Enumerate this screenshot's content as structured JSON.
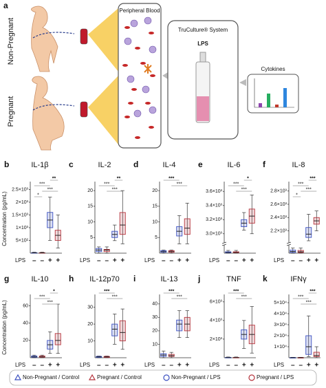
{
  "panel_a": {
    "letter": "a",
    "non_pregnant": "Non-Pregnant",
    "pregnant": "Pregnant",
    "blood": "Peripheral Blood",
    "truculture": "TruCulture® System",
    "lps": "LPS",
    "cytokines": "Cytokines"
  },
  "y_axis_label": "Concentration (pg/mL)",
  "lps_label": "LPS",
  "lps_groups": [
    "–",
    "–",
    "+",
    "+"
  ],
  "legend": [
    {
      "name": "Non-Pregnant / Control",
      "color": "#3a4fc0",
      "marker": "triangle"
    },
    {
      "name": "Pregnant / Control",
      "color": "#b5323b",
      "marker": "triangle"
    },
    {
      "name": "Non-Pregnant / LPS",
      "color": "#3a4fc0",
      "marker": "circle"
    },
    {
      "name": "Pregnant / LPS",
      "color": "#b5323b",
      "marker": "circle"
    }
  ],
  "chart_data": [
    {
      "type": "box",
      "panel": "b",
      "title": "IL-1β",
      "ylim": [
        0,
        2700
      ],
      "yticks": [
        {
          "value": 500,
          "label": "5×10²"
        },
        {
          "value": 1000,
          "label": "1×10³"
        },
        {
          "value": 1500,
          "label": "1.5×10³"
        },
        {
          "value": 2000,
          "label": "2×10³"
        },
        {
          "value": 2500,
          "label": "2.5×10³"
        }
      ],
      "boxes": [
        [
          0,
          5,
          10,
          20,
          40
        ],
        [
          0,
          5,
          10,
          20,
          40
        ],
        [
          500,
          1000,
          1300,
          1600,
          2200
        ],
        [
          200,
          500,
          700,
          900,
          1500
        ]
      ],
      "annotations": [
        {
          "text": "**",
          "from": 2,
          "to": 3
        },
        {
          "text": "***",
          "from": 0,
          "to": 2
        },
        {
          "text": "***",
          "from": 1,
          "to": 3
        },
        {
          "text": "*",
          "from": 0,
          "to": 1
        }
      ]
    },
    {
      "type": "box",
      "panel": "c",
      "title": "IL-2",
      "ylim": [
        0,
        22
      ],
      "yticks": [
        5,
        10,
        15,
        20
      ],
      "boxes": [
        [
          0,
          0.5,
          1,
          1.5,
          2
        ],
        [
          0,
          0.5,
          1,
          1.2,
          2
        ],
        [
          4,
          5,
          6,
          7,
          9
        ],
        [
          3,
          6,
          9,
          13,
          20
        ]
      ],
      "annotations": [
        {
          "text": "**",
          "from": 2,
          "to": 3
        },
        {
          "text": "***",
          "from": 0,
          "to": 2
        },
        {
          "text": "***",
          "from": 1,
          "to": 3
        }
      ]
    },
    {
      "type": "box",
      "panel": "d",
      "title": "IL-4",
      "ylim": [
        0,
        22
      ],
      "yticks": [
        5,
        10,
        15,
        20
      ],
      "boxes": [
        [
          0,
          0.3,
          0.5,
          0.8,
          1
        ],
        [
          0,
          0.3,
          0.5,
          0.8,
          1
        ],
        [
          3,
          5.5,
          7,
          8.5,
          12
        ],
        [
          3,
          6,
          8,
          11,
          16
        ]
      ],
      "annotations": [
        {
          "text": "***",
          "from": 0,
          "to": 2
        },
        {
          "text": "***",
          "from": 1,
          "to": 3
        }
      ]
    },
    {
      "type": "box",
      "panel": "e",
      "title": "IL-6",
      "ylim": [
        0,
        3700
      ],
      "axis_break": [
        200,
        2900
      ],
      "yticks": [
        {
          "value": 3000,
          "label": "3.0×10³"
        },
        {
          "value": 3200,
          "label": "3.2×10³"
        },
        {
          "value": 3400,
          "label": "3.4×10³"
        },
        {
          "value": 3600,
          "label": "3.6×10³"
        }
      ],
      "boxes": [
        [
          0,
          10,
          20,
          40,
          80
        ],
        [
          0,
          10,
          20,
          40,
          80
        ],
        [
          3050,
          3100,
          3150,
          3200,
          3300
        ],
        [
          3000,
          3150,
          3250,
          3350,
          3550
        ]
      ],
      "annotations": [
        {
          "text": "*",
          "from": 2,
          "to": 3
        },
        {
          "text": "***",
          "from": 0,
          "to": 2
        },
        {
          "text": "***",
          "from": 1,
          "to": 3
        }
      ]
    },
    {
      "type": "box",
      "panel": "f",
      "title": "IL-8",
      "ylim": [
        0,
        2900
      ],
      "axis_break": [
        200,
        2050
      ],
      "yticks": [
        {
          "value": 2200,
          "label": "2.2×10³"
        },
        {
          "value": 2400,
          "label": "2.4×10³"
        },
        {
          "value": 2600,
          "label": "2.6×10³"
        },
        {
          "value": 2800,
          "label": "2.8×10³"
        }
      ],
      "boxes": [
        [
          0,
          20,
          50,
          90,
          150
        ],
        [
          0,
          20,
          40,
          80,
          150
        ],
        [
          2050,
          2100,
          2150,
          2250,
          2450
        ],
        [
          2200,
          2300,
          2350,
          2400,
          2500
        ]
      ],
      "annotations": [
        {
          "text": "***",
          "from": 2,
          "to": 3
        },
        {
          "text": "***",
          "from": 0,
          "to": 2
        },
        {
          "text": "***",
          "from": 1,
          "to": 3
        },
        {
          "text": "*",
          "from": 0,
          "to": 1
        }
      ]
    },
    {
      "type": "box",
      "panel": "g",
      "title": "IL-10",
      "ylim": [
        0,
        70
      ],
      "yticks": [
        20,
        40,
        60
      ],
      "boxes": [
        [
          0,
          0.5,
          1,
          2,
          3
        ],
        [
          0,
          0.5,
          1,
          2,
          3
        ],
        [
          5,
          10,
          15,
          20,
          30
        ],
        [
          5,
          15,
          20,
          28,
          62
        ]
      ],
      "annotations": [
        {
          "text": "*",
          "from": 2,
          "to": 3
        },
        {
          "text": "***",
          "from": 0,
          "to": 2
        },
        {
          "text": "***",
          "from": 1,
          "to": 3
        }
      ]
    },
    {
      "type": "box",
      "panel": "h",
      "title": "IL-12p70",
      "ylim": [
        0,
        36
      ],
      "yticks": [
        10,
        20,
        30
      ],
      "boxes": [
        [
          0,
          0.2,
          0.5,
          0.8,
          1
        ],
        [
          0,
          0.2,
          0.5,
          0.8,
          1
        ],
        [
          8,
          13,
          17,
          20,
          26
        ],
        [
          5,
          10,
          15,
          22,
          29
        ]
      ],
      "annotations": [
        {
          "text": "***",
          "from": 0,
          "to": 2
        },
        {
          "text": "***",
          "from": 1,
          "to": 3
        }
      ]
    },
    {
      "type": "box",
      "panel": "i",
      "title": "IL-13",
      "ylim": [
        0,
        45
      ],
      "yticks": [
        10,
        20,
        30,
        40
      ],
      "boxes": [
        [
          0,
          1,
          2,
          3,
          5
        ],
        [
          0,
          1,
          1.5,
          2.5,
          4
        ],
        [
          15,
          20,
          25,
          28,
          35
        ],
        [
          15,
          20,
          25,
          30,
          35
        ]
      ],
      "annotations": [
        {
          "text": "***",
          "from": 0,
          "to": 2
        },
        {
          "text": "***",
          "from": 1,
          "to": 3
        }
      ]
    },
    {
      "type": "box",
      "panel": "j",
      "title": "TNF",
      "ylim": [
        0,
        6500
      ],
      "yticks": [
        {
          "value": 2000,
          "label": "2×10³"
        },
        {
          "value": 4000,
          "label": "4×10³"
        },
        {
          "value": 6000,
          "label": "6×10³"
        }
      ],
      "boxes": [
        [
          0,
          10,
          20,
          40,
          80
        ],
        [
          0,
          10,
          20,
          40,
          80
        ],
        [
          1000,
          2000,
          2500,
          3000,
          4000
        ],
        [
          500,
          1500,
          2500,
          3500,
          5500
        ]
      ],
      "annotations": [
        {
          "text": "***",
          "from": 0,
          "to": 2
        },
        {
          "text": "***",
          "from": 1,
          "to": 3
        }
      ]
    },
    {
      "type": "box",
      "panel": "k",
      "title": "IFNγ",
      "ylim": [
        0,
        55000
      ],
      "yticks": [
        {
          "value": 10000,
          "label": "1×10⁴"
        },
        {
          "value": 20000,
          "label": "2×10⁴"
        },
        {
          "value": 30000,
          "label": "3×10⁴"
        },
        {
          "value": 40000,
          "label": "4×10⁴"
        },
        {
          "value": 50000,
          "label": "5×10⁴"
        }
      ],
      "boxes": [
        [
          0,
          50,
          100,
          200,
          400
        ],
        [
          0,
          50,
          100,
          200,
          400
        ],
        [
          1000,
          3000,
          10000,
          20000,
          38000
        ],
        [
          0,
          1000,
          2000,
          5000,
          10000
        ]
      ],
      "annotations": [
        {
          "text": "***",
          "from": 2,
          "to": 3
        },
        {
          "text": "***",
          "from": 0,
          "to": 2
        },
        {
          "text": "***",
          "from": 1,
          "to": 3
        }
      ]
    }
  ]
}
